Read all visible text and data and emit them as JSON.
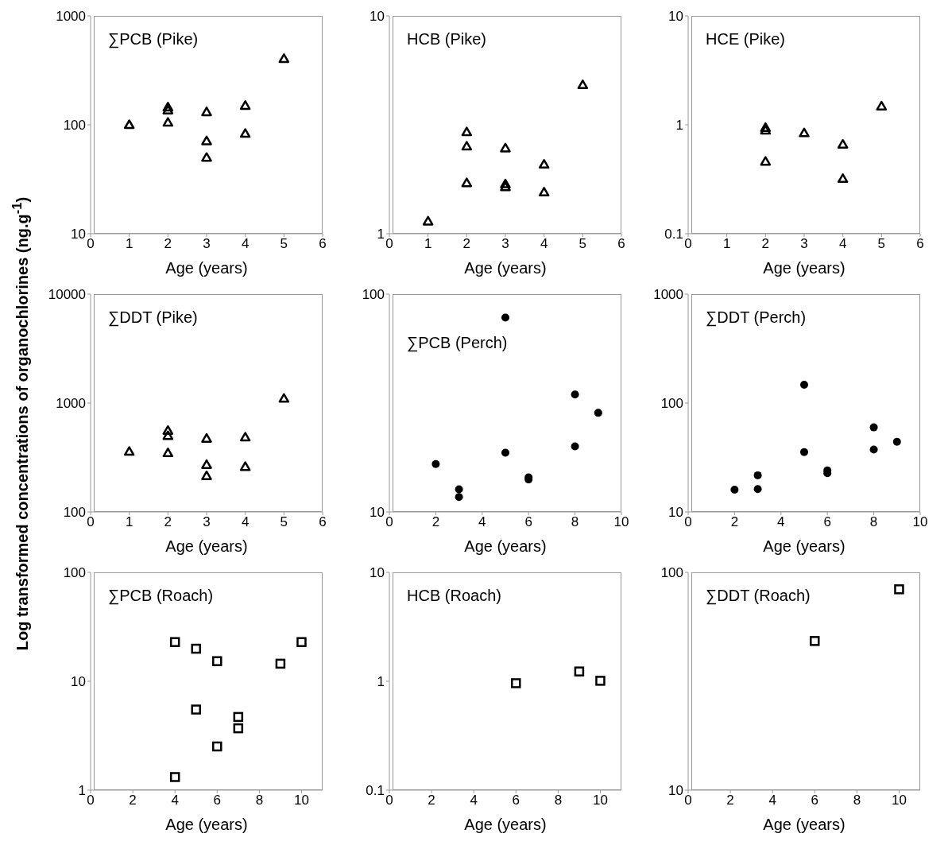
{
  "chart_data": [
    {
      "type": "scatter",
      "title": "∑PCB (Pike)",
      "xlabel": "Age (years)",
      "x": [
        1,
        2,
        2,
        2,
        3,
        3,
        3,
        4,
        4,
        5
      ],
      "values": [
        100,
        145,
        136,
        105,
        131,
        71,
        50,
        150,
        83,
        404
      ],
      "color": "#000000",
      "marker": "triangle",
      "log": "y",
      "xlim": [
        0,
        6
      ],
      "xticks": [
        0,
        1,
        2,
        3,
        4,
        5,
        6
      ],
      "ylim": [
        10,
        1000
      ],
      "yticks": [
        10,
        100,
        1000
      ],
      "grid": false,
      "legend": false
    },
    {
      "type": "scatter",
      "title": "HCB (Pike)",
      "xlabel": "Age (years)",
      "x": [
        1,
        2,
        2,
        2,
        3,
        3,
        3,
        4,
        4,
        5
      ],
      "values": [
        1.14,
        2.93,
        2.52,
        1.71,
        2.47,
        1.69,
        1.64,
        2.08,
        1.55,
        4.82
      ],
      "color": "#000000",
      "marker": "triangle",
      "log": "y",
      "xlim": [
        0,
        6
      ],
      "xticks": [
        0,
        1,
        2,
        3,
        4,
        5,
        6
      ],
      "ylim": [
        1,
        10
      ],
      "yticks": [
        1,
        10
      ],
      "grid": false,
      "legend": false
    },
    {
      "type": "scatter",
      "title": "HCE (Pike)",
      "xlabel": "Age (years)",
      "x": [
        2,
        2,
        2,
        3,
        4,
        4,
        5
      ],
      "values": [
        0.94,
        0.89,
        0.46,
        0.84,
        0.66,
        0.32,
        1.48
      ],
      "color": "#000000",
      "marker": "triangle",
      "log": "y",
      "xlim": [
        0,
        6
      ],
      "xticks": [
        0,
        1,
        2,
        3,
        4,
        5,
        6
      ],
      "ylim": [
        0.1,
        10
      ],
      "yticks": [
        0.1,
        1,
        10
      ],
      "grid": false,
      "legend": false
    },
    {
      "type": "scatter",
      "title": "∑DDT (Pike)",
      "xlabel": "Age (years)",
      "ylabel": "Log transformed concentrations of organochlorines (ng.g$^{-1}$)",
      "x": [
        1,
        2,
        2,
        2,
        3,
        3,
        3,
        4,
        4,
        5
      ],
      "values": [
        358,
        558,
        500,
        348,
        472,
        271,
        214,
        485,
        260,
        1100
      ],
      "color": "#000000",
      "marker": "triangle",
      "log": "y",
      "xlim": [
        0,
        6
      ],
      "xticks": [
        0,
        1,
        2,
        3,
        4,
        5,
        6
      ],
      "ylim": [
        100,
        10000
      ],
      "yticks": [
        100,
        1000,
        10000
      ],
      "grid": false,
      "legend": false
    },
    {
      "type": "scatter",
      "title": "∑PCB (Perch)",
      "xlabel": "Age (years)",
      "x": [
        2,
        3,
        3,
        5,
        5,
        6,
        6,
        8,
        8,
        9
      ],
      "values": [
        16.6,
        12.7,
        11.7,
        78,
        18.7,
        14.4,
        14.1,
        34.6,
        20,
        28.5
      ],
      "color": "#000000",
      "marker": "circle",
      "log": "y",
      "xlim": [
        0,
        10
      ],
      "xticks": [
        0,
        2,
        4,
        6,
        8,
        10
      ],
      "ylim": [
        10,
        100
      ],
      "yticks": [
        10,
        100
      ],
      "grid": false,
      "legend": false
    },
    {
      "type": "scatter",
      "title": "∑DDT (Perch)",
      "xlabel": "Age (years)",
      "x": [
        2,
        3,
        3,
        5,
        5,
        6,
        6,
        8,
        8,
        9
      ],
      "values": [
        16,
        21.7,
        16.2,
        147,
        35.4,
        24.1,
        22.7,
        59.8,
        37.4,
        44.1
      ],
      "color": "#000000",
      "marker": "circle",
      "log": "y",
      "xlim": [
        0,
        10
      ],
      "xticks": [
        0,
        2,
        4,
        6,
        8,
        10
      ],
      "ylim": [
        10,
        1000
      ],
      "yticks": [
        10,
        100,
        1000
      ],
      "grid": false,
      "legend": false
    },
    {
      "type": "scatter",
      "title": "∑PCB (Roach)",
      "xlabel": "Age (years)",
      "x": [
        4,
        4,
        5,
        5,
        6,
        6,
        7,
        7,
        9,
        10
      ],
      "values": [
        22.9,
        1.32,
        19.9,
        5.5,
        15.3,
        2.52,
        4.7,
        3.7,
        14.5,
        22.9
      ],
      "color": "#000000",
      "marker": "square",
      "log": "y",
      "xlim": [
        0,
        11
      ],
      "xticks": [
        0,
        2,
        4,
        6,
        8,
        10
      ],
      "ylim": [
        1,
        100
      ],
      "yticks": [
        1,
        10,
        100
      ],
      "grid": false,
      "legend": false
    },
    {
      "type": "scatter",
      "title": "HCB (Roach)",
      "xlabel": "Age (years)",
      "x": [
        6,
        9,
        10
      ],
      "values": [
        0.96,
        1.23,
        1.01
      ],
      "color": "#000000",
      "marker": "square",
      "log": "y",
      "xlim": [
        0,
        11
      ],
      "xticks": [
        0,
        2,
        4,
        6,
        8,
        10
      ],
      "ylim": [
        0.1,
        10
      ],
      "yticks": [
        0.1,
        1,
        10
      ],
      "grid": false,
      "legend": false
    },
    {
      "type": "scatter",
      "title": "∑DDT (Roach)",
      "xlabel": "Age (years)",
      "x": [
        6,
        10
      ],
      "values": [
        48.4,
        83.6
      ],
      "color": "#000000",
      "marker": "square",
      "log": "y",
      "xlim": [
        0,
        11
      ],
      "xticks": [
        0,
        2,
        4,
        6,
        8,
        10
      ],
      "ylim": [
        10,
        100
      ],
      "yticks": [
        10,
        100
      ],
      "grid": false,
      "legend": false
    }
  ]
}
